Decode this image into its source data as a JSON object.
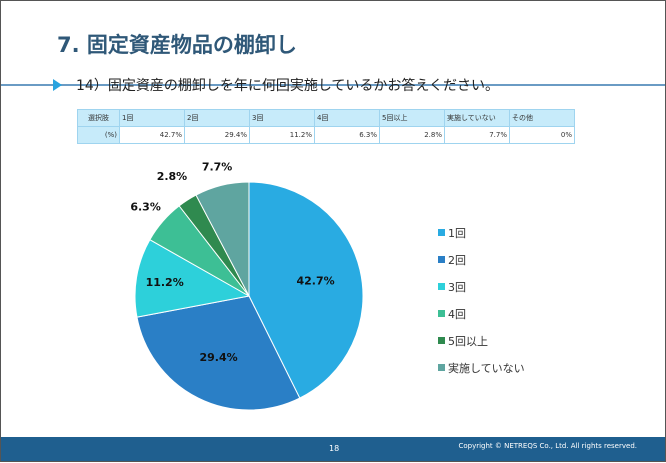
{
  "header": {
    "title": "7. 固定資産物品の棚卸し"
  },
  "question": "14）固定資産の棚卸しを年に何回実施しているかお答えください。",
  "table": {
    "row_header": "選択肢",
    "value_header": "(%)",
    "columns": [
      "1回",
      "2回",
      "3回",
      "4回",
      "5回以上",
      "実施していない",
      "その他"
    ],
    "values": [
      "42.7%",
      "29.4%",
      "11.2%",
      "6.3%",
      "2.8%",
      "7.7%",
      "0%"
    ]
  },
  "chart_data": {
    "type": "pie",
    "legend": "right",
    "categories": [
      "1回",
      "2回",
      "3回",
      "4回",
      "5回以上",
      "実施していない"
    ],
    "values": [
      42.7,
      29.4,
      11.2,
      6.3,
      2.8,
      7.7
    ],
    "labels": [
      "42.7%",
      "29.4%",
      "11.2%",
      "6.3%",
      "2.8%",
      "7.7%"
    ],
    "colors": [
      "#29abe2",
      "#2a7fc6",
      "#2dd0da",
      "#3dbf95",
      "#2f8a4f",
      "#5fa5a0"
    ]
  },
  "footer": {
    "page": "18",
    "copyright": "Copyright © NETREQS Co., Ltd. All rights reserved."
  }
}
